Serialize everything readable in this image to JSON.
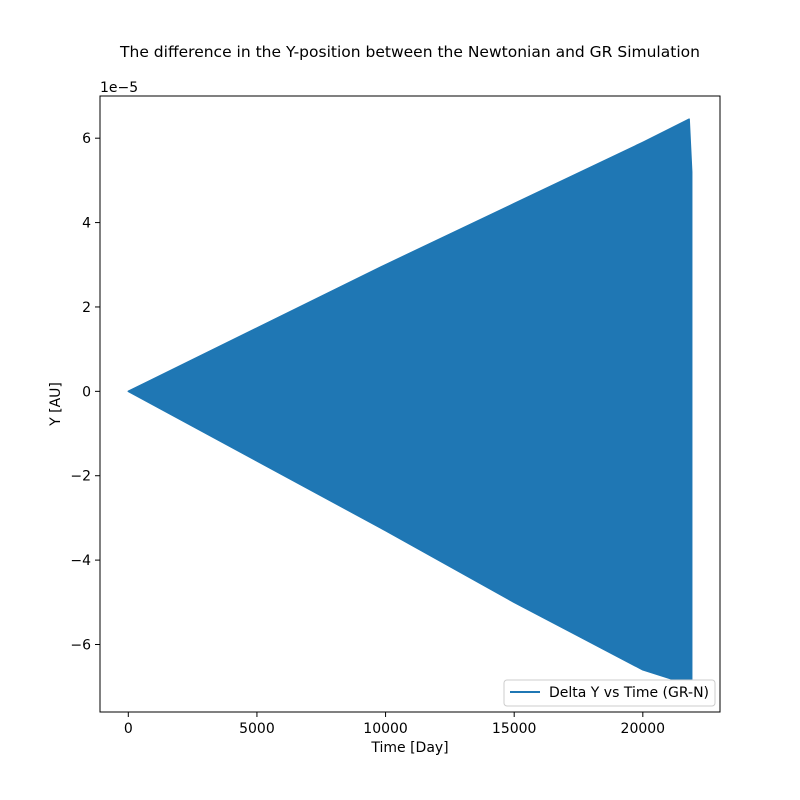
{
  "chart_data": {
    "type": "line",
    "title": "The difference in the Y-position between the Newtonian and GR Simulation",
    "xlabel": "Time [Day]",
    "ylabel": "Y [AU]",
    "y_offset_label": "1e−5",
    "y_scale": 1e-05,
    "xlim": [
      -1100,
      23000
    ],
    "ylim": [
      -7.6,
      7.0
    ],
    "x_ticks": [
      0,
      5000,
      10000,
      15000,
      20000
    ],
    "x_tick_labels": [
      "0",
      "5000",
      "10000",
      "15000",
      "20000"
    ],
    "y_ticks": [
      -6,
      -4,
      -2,
      0,
      2,
      4,
      6
    ],
    "y_tick_labels": [
      "−6",
      "−4",
      "−2",
      "0",
      "2",
      "4",
      "6"
    ],
    "grid": false,
    "legend_position": "lower-right",
    "colors": {
      "series": "#1f77b4"
    },
    "series": [
      {
        "name": "Delta Y vs Time (GR-N)",
        "description_envelope": {
          "x": [
            0,
            5000,
            10000,
            15000,
            20000,
            21800,
            21900
          ],
          "upper": [
            0,
            1.5,
            3.0,
            4.45,
            5.9,
            6.45,
            5.2
          ],
          "lower": [
            0,
            -1.65,
            -3.3,
            -5.0,
            -6.6,
            -6.95,
            -6.95
          ]
        }
      }
    ]
  }
}
